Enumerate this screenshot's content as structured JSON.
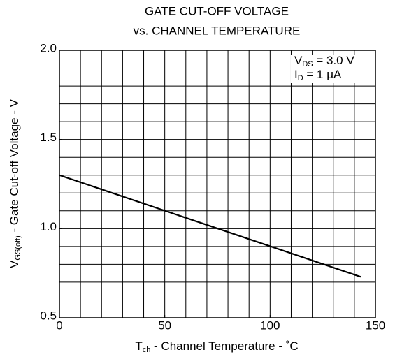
{
  "chart_data": {
    "type": "line",
    "title": [
      "GATE CUT-OFF VOLTAGE",
      "vs. CHANNEL TEMPERATURE"
    ],
    "x_label": {
      "base": "T",
      "sub": "ch",
      "rest": " - Channel Temperature - ˚C"
    },
    "y_label": {
      "base": "V",
      "sub": "GS(off)",
      "rest": " - Gate Cut-off Voltage - V"
    },
    "annotations": [
      {
        "base": "V",
        "sub": "DS",
        "rest": " = 3.0 V"
      },
      {
        "base": "I",
        "sub": "D",
        "rest": " = 1 μA"
      }
    ],
    "x": [
      0,
      143
    ],
    "series": [
      {
        "color": "#000000",
        "values": [
          1.3,
          0.73
        ]
      }
    ],
    "xlim": [
      0,
      150
    ],
    "ylim": [
      0.5,
      2.0
    ],
    "xticks": [
      0,
      50,
      100,
      150
    ],
    "yticks": [
      0.5,
      {
        "value": 1.0,
        "label": "1.0"
      },
      1.5,
      {
        "value": 2.0,
        "label": "2.0"
      }
    ],
    "xgrid": [
      0,
      10,
      20,
      30,
      40,
      50,
      60,
      70,
      80,
      90,
      100,
      110,
      120,
      130,
      140,
      150
    ],
    "ygrid": [
      0.5,
      0.6,
      0.7,
      0.8,
      0.9,
      1.0,
      1.1,
      1.2,
      1.3,
      1.4,
      1.5,
      1.6,
      1.7,
      1.8,
      1.9,
      2.0
    ],
    "grid": true
  }
}
